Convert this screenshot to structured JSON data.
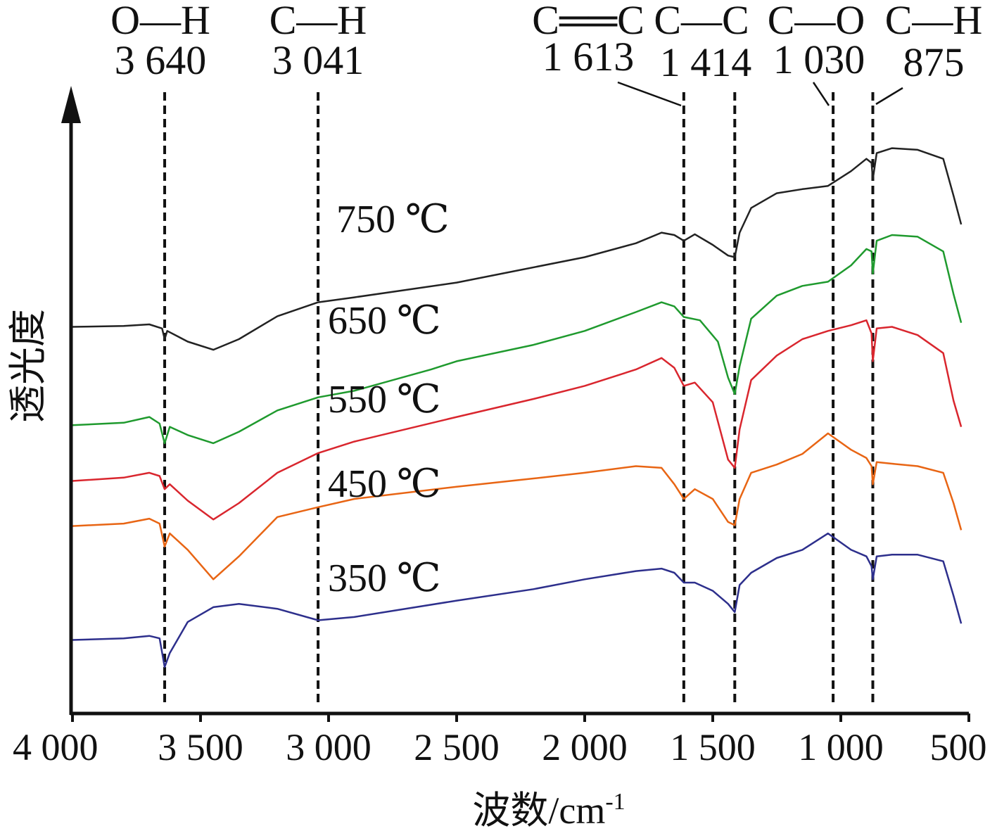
{
  "chart_data": {
    "type": "line",
    "title": "",
    "xlabel": "波数/cm",
    "xlabel_sup": "-1",
    "ylabel": "透光度",
    "xlim": [
      4000,
      500
    ],
    "x_reversed": true,
    "ylim": [
      0,
      7.4
    ],
    "y_ticks_shown": false,
    "grid": false,
    "legend": "inline labels",
    "x_ticks": [
      {
        "value": 4000,
        "label": "4 000"
      },
      {
        "value": 3500,
        "label": "3 500"
      },
      {
        "value": 3000,
        "label": "3 000"
      },
      {
        "value": 2500,
        "label": "2 500"
      },
      {
        "value": 2000,
        "label": "2 000"
      },
      {
        "value": 1500,
        "label": "1 500"
      },
      {
        "value": 1000,
        "label": "1 000"
      },
      {
        "value": 500,
        "label": "500"
      }
    ],
    "reference_lines": [
      {
        "x": 3640,
        "bond": "O—H",
        "wavenumber": "3 640"
      },
      {
        "x": 3041,
        "bond": "C—H",
        "wavenumber": "3 041"
      },
      {
        "x": 1613,
        "bond": "C══C",
        "wavenumber": "1 613"
      },
      {
        "x": 1414,
        "bond": "C—C",
        "wavenumber": "1 414"
      },
      {
        "x": 1030,
        "bond": "C—O",
        "wavenumber": "1 030"
      },
      {
        "x": 875,
        "bond": "C—H",
        "wavenumber": "875"
      }
    ],
    "series": [
      {
        "name": "750 ℃",
        "color": "#222222",
        "points": [
          [
            4000,
            4.7
          ],
          [
            3800,
            4.71
          ],
          [
            3700,
            4.73
          ],
          [
            3650,
            4.68
          ],
          [
            3640,
            4.55
          ],
          [
            3630,
            4.65
          ],
          [
            3550,
            4.52
          ],
          [
            3450,
            4.42
          ],
          [
            3350,
            4.55
          ],
          [
            3200,
            4.83
          ],
          [
            3041,
            5.0
          ],
          [
            2900,
            5.06
          ],
          [
            2500,
            5.24
          ],
          [
            2000,
            5.55
          ],
          [
            1800,
            5.72
          ],
          [
            1700,
            5.85
          ],
          [
            1650,
            5.82
          ],
          [
            1613,
            5.75
          ],
          [
            1570,
            5.83
          ],
          [
            1500,
            5.7
          ],
          [
            1440,
            5.57
          ],
          [
            1414,
            5.55
          ],
          [
            1395,
            5.85
          ],
          [
            1350,
            6.15
          ],
          [
            1250,
            6.33
          ],
          [
            1150,
            6.38
          ],
          [
            1050,
            6.42
          ],
          [
            960,
            6.6
          ],
          [
            900,
            6.75
          ],
          [
            880,
            6.7
          ],
          [
            875,
            6.5
          ],
          [
            860,
            6.82
          ],
          [
            800,
            6.88
          ],
          [
            700,
            6.86
          ],
          [
            600,
            6.75
          ],
          [
            560,
            6.3
          ],
          [
            530,
            5.95
          ]
        ]
      },
      {
        "name": "650 ℃",
        "color": "#1f9a2e",
        "points": [
          [
            4000,
            3.5
          ],
          [
            3800,
            3.53
          ],
          [
            3700,
            3.6
          ],
          [
            3660,
            3.52
          ],
          [
            3640,
            3.28
          ],
          [
            3620,
            3.48
          ],
          [
            3550,
            3.38
          ],
          [
            3450,
            3.28
          ],
          [
            3350,
            3.42
          ],
          [
            3200,
            3.68
          ],
          [
            3041,
            3.84
          ],
          [
            2900,
            3.92
          ],
          [
            2600,
            4.18
          ],
          [
            2500,
            4.28
          ],
          [
            2200,
            4.48
          ],
          [
            2000,
            4.65
          ],
          [
            1800,
            4.88
          ],
          [
            1700,
            5.0
          ],
          [
            1650,
            4.95
          ],
          [
            1613,
            4.82
          ],
          [
            1550,
            4.78
          ],
          [
            1480,
            4.52
          ],
          [
            1440,
            4.08
          ],
          [
            1414,
            3.88
          ],
          [
            1395,
            4.22
          ],
          [
            1350,
            4.8
          ],
          [
            1250,
            5.08
          ],
          [
            1150,
            5.2
          ],
          [
            1050,
            5.25
          ],
          [
            960,
            5.45
          ],
          [
            900,
            5.65
          ],
          [
            880,
            5.62
          ],
          [
            875,
            5.35
          ],
          [
            860,
            5.75
          ],
          [
            800,
            5.82
          ],
          [
            700,
            5.8
          ],
          [
            600,
            5.62
          ],
          [
            560,
            5.1
          ],
          [
            530,
            4.75
          ]
        ]
      },
      {
        "name": "550 ℃",
        "color": "#d9262e",
        "points": [
          [
            4000,
            2.82
          ],
          [
            3800,
            2.86
          ],
          [
            3700,
            2.92
          ],
          [
            3660,
            2.88
          ],
          [
            3640,
            2.72
          ],
          [
            3620,
            2.78
          ],
          [
            3550,
            2.58
          ],
          [
            3450,
            2.35
          ],
          [
            3350,
            2.55
          ],
          [
            3200,
            2.92
          ],
          [
            3041,
            3.16
          ],
          [
            2900,
            3.3
          ],
          [
            2500,
            3.6
          ],
          [
            2200,
            3.82
          ],
          [
            2000,
            3.98
          ],
          [
            1800,
            4.18
          ],
          [
            1700,
            4.32
          ],
          [
            1650,
            4.2
          ],
          [
            1613,
            3.98
          ],
          [
            1570,
            4.02
          ],
          [
            1500,
            3.78
          ],
          [
            1440,
            3.08
          ],
          [
            1414,
            2.98
          ],
          [
            1395,
            3.45
          ],
          [
            1350,
            4.05
          ],
          [
            1250,
            4.35
          ],
          [
            1150,
            4.55
          ],
          [
            1050,
            4.65
          ],
          [
            960,
            4.72
          ],
          [
            900,
            4.78
          ],
          [
            880,
            4.62
          ],
          [
            875,
            4.28
          ],
          [
            860,
            4.68
          ],
          [
            800,
            4.7
          ],
          [
            700,
            4.6
          ],
          [
            600,
            4.38
          ],
          [
            560,
            3.8
          ],
          [
            530,
            3.48
          ]
        ]
      },
      {
        "name": "450 ℃",
        "color": "#e86514",
        "points": [
          [
            4000,
            2.27
          ],
          [
            3800,
            2.3
          ],
          [
            3700,
            2.36
          ],
          [
            3660,
            2.3
          ],
          [
            3640,
            2.02
          ],
          [
            3620,
            2.18
          ],
          [
            3550,
            1.98
          ],
          [
            3450,
            1.62
          ],
          [
            3350,
            1.9
          ],
          [
            3200,
            2.38
          ],
          [
            3041,
            2.5
          ],
          [
            2900,
            2.6
          ],
          [
            2500,
            2.75
          ],
          [
            2200,
            2.85
          ],
          [
            2000,
            2.92
          ],
          [
            1800,
            3.0
          ],
          [
            1700,
            2.98
          ],
          [
            1650,
            2.78
          ],
          [
            1613,
            2.6
          ],
          [
            1570,
            2.72
          ],
          [
            1500,
            2.6
          ],
          [
            1440,
            2.32
          ],
          [
            1414,
            2.28
          ],
          [
            1395,
            2.6
          ],
          [
            1350,
            2.92
          ],
          [
            1250,
            3.02
          ],
          [
            1150,
            3.15
          ],
          [
            1050,
            3.4
          ],
          [
            960,
            3.2
          ],
          [
            900,
            3.1
          ],
          [
            880,
            3.0
          ],
          [
            875,
            2.78
          ],
          [
            860,
            3.05
          ],
          [
            800,
            3.03
          ],
          [
            700,
            3.0
          ],
          [
            600,
            2.92
          ],
          [
            560,
            2.55
          ],
          [
            530,
            2.22
          ]
        ]
      },
      {
        "name": "350 ℃",
        "color": "#2d2f8c",
        "points": [
          [
            4000,
            0.88
          ],
          [
            3800,
            0.9
          ],
          [
            3700,
            0.93
          ],
          [
            3660,
            0.9
          ],
          [
            3640,
            0.55
          ],
          [
            3620,
            0.72
          ],
          [
            3550,
            1.1
          ],
          [
            3450,
            1.28
          ],
          [
            3350,
            1.32
          ],
          [
            3200,
            1.26
          ],
          [
            3041,
            1.12
          ],
          [
            2900,
            1.16
          ],
          [
            2500,
            1.36
          ],
          [
            2200,
            1.5
          ],
          [
            2000,
            1.62
          ],
          [
            1800,
            1.72
          ],
          [
            1700,
            1.75
          ],
          [
            1650,
            1.7
          ],
          [
            1613,
            1.58
          ],
          [
            1570,
            1.58
          ],
          [
            1500,
            1.48
          ],
          [
            1440,
            1.32
          ],
          [
            1414,
            1.22
          ],
          [
            1395,
            1.55
          ],
          [
            1350,
            1.7
          ],
          [
            1250,
            1.88
          ],
          [
            1150,
            1.98
          ],
          [
            1050,
            2.18
          ],
          [
            960,
            1.98
          ],
          [
            900,
            1.9
          ],
          [
            880,
            1.78
          ],
          [
            875,
            1.62
          ],
          [
            860,
            1.9
          ],
          [
            800,
            1.92
          ],
          [
            700,
            1.92
          ],
          [
            600,
            1.84
          ],
          [
            560,
            1.42
          ],
          [
            530,
            1.08
          ]
        ]
      }
    ]
  }
}
